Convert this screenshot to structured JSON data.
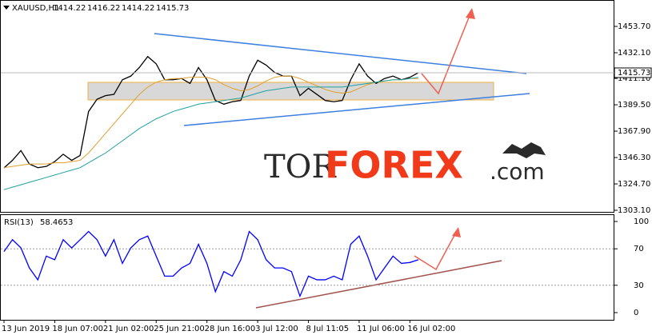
{
  "chart_data": [
    {
      "type": "line",
      "symbol": "XAUUSD,H1",
      "ohlc": [
        1414.22,
        1416.22,
        1414.22,
        1415.73
      ],
      "last_price": 1415.73,
      "watermark": [
        "TOR",
        "FOREX",
        ".com"
      ],
      "categories": [
        "13 Jun 2019",
        null,
        null,
        null,
        null,
        null,
        "18 Jun 07:00",
        null,
        null,
        null,
        null,
        null,
        "21 Jun 02:00",
        null,
        null,
        null,
        null,
        null,
        "25 Jun 21:00",
        null,
        null,
        null,
        null,
        null,
        "28 Jun 16:00",
        null,
        null,
        null,
        null,
        null,
        "3 Jul 12:00",
        null,
        null,
        null,
        null,
        null,
        "8 Jul 11:05",
        null,
        null,
        null,
        null,
        null,
        "11 Jul 06:00",
        null,
        null,
        null,
        null,
        null,
        "16 Jul 02:00",
        null
      ],
      "series": [
        {
          "name": "XAUUSD",
          "color": "#000000",
          "values": [
            1337.8,
            1344,
            1352,
            1341,
            1338,
            1339,
            1343,
            1349,
            1344,
            1348,
            1384,
            1394,
            1397,
            1398,
            1410,
            1413,
            1420,
            1429,
            1423,
            1410,
            1410,
            1411,
            1407,
            1420,
            1410,
            1393,
            1390,
            1392,
            1393,
            1413,
            1426,
            1422,
            1416,
            1413,
            1413,
            1397,
            1403,
            1398,
            1393,
            1392,
            1393,
            1410,
            1423,
            1413,
            1407,
            1411,
            1413,
            1410,
            1412,
            1415.73
          ]
        },
        {
          "color": "#e0a030",
          "values": [
            1338,
            1339,
            1340,
            1341,
            1341,
            1341,
            1342,
            1342,
            1343,
            1344,
            1350,
            1358,
            1366,
            1374,
            1382,
            1390,
            1398,
            1404,
            1408,
            1410,
            1411,
            1411,
            1412,
            1412,
            1412,
            1410,
            1406,
            1403,
            1401,
            1402,
            1405,
            1409,
            1412,
            1413,
            1413,
            1411,
            1408,
            1405,
            1402,
            1400,
            1399,
            1400,
            1403,
            1406,
            1408,
            1409,
            1410,
            1410,
            1411,
            1411
          ]
        },
        {
          "color": "#20a0a0",
          "values": [
            1320,
            1322,
            1324,
            1326,
            1328,
            1330,
            1332,
            1334,
            1336,
            1338,
            1342,
            1346,
            1350,
            1355,
            1360,
            1365,
            1370,
            1374,
            1378,
            1381,
            1384,
            1386,
            1388,
            1390,
            1391,
            1392,
            1393,
            1394,
            1395,
            1397,
            1399,
            1401,
            1402,
            1403,
            1404,
            1404,
            1404,
            1404,
            1404,
            1404,
            1404,
            1405,
            1406,
            1407,
            1408,
            1409,
            1410,
            1410,
            1411,
            1412
          ]
        }
      ],
      "ylim": [
        1301.8,
        1475.3
      ],
      "yticks": [
        {
          "value": 1453.7,
          "label": "1453.70"
        },
        {
          "value": 1432.1,
          "label": "1432.10"
        },
        {
          "value": 1411.1,
          "label": "1411.10"
        },
        {
          "value": 1389.5,
          "label": "1389.50"
        },
        {
          "value": 1367.9,
          "label": "1367.90"
        },
        {
          "value": 1346.3,
          "label": "1346.30"
        },
        {
          "value": 1324.7,
          "label": "1324.70"
        },
        {
          "value": 1303.1,
          "label": "1303.10"
        }
      ],
      "grid": false
    },
    {
      "type": "line",
      "title": "RSI(13)",
      "last_value": 58.4653,
      "series": [
        {
          "color": "#0000ff",
          "values": [
            67,
            80,
            71,
            49,
            36,
            62,
            58,
            80,
            71,
            80,
            89,
            80,
            62,
            80,
            54,
            71,
            80,
            84,
            62,
            40,
            40,
            49,
            54,
            75,
            54,
            23,
            45,
            40,
            58,
            89,
            80,
            58,
            49,
            49,
            45,
            18,
            40,
            36,
            36,
            40,
            36,
            75,
            84,
            62,
            36,
            49,
            62,
            54,
            55,
            58
          ]
        }
      ],
      "ylim": [
        0,
        100
      ],
      "yticks": [
        0,
        30,
        70,
        100
      ],
      "grid": true
    }
  ]
}
